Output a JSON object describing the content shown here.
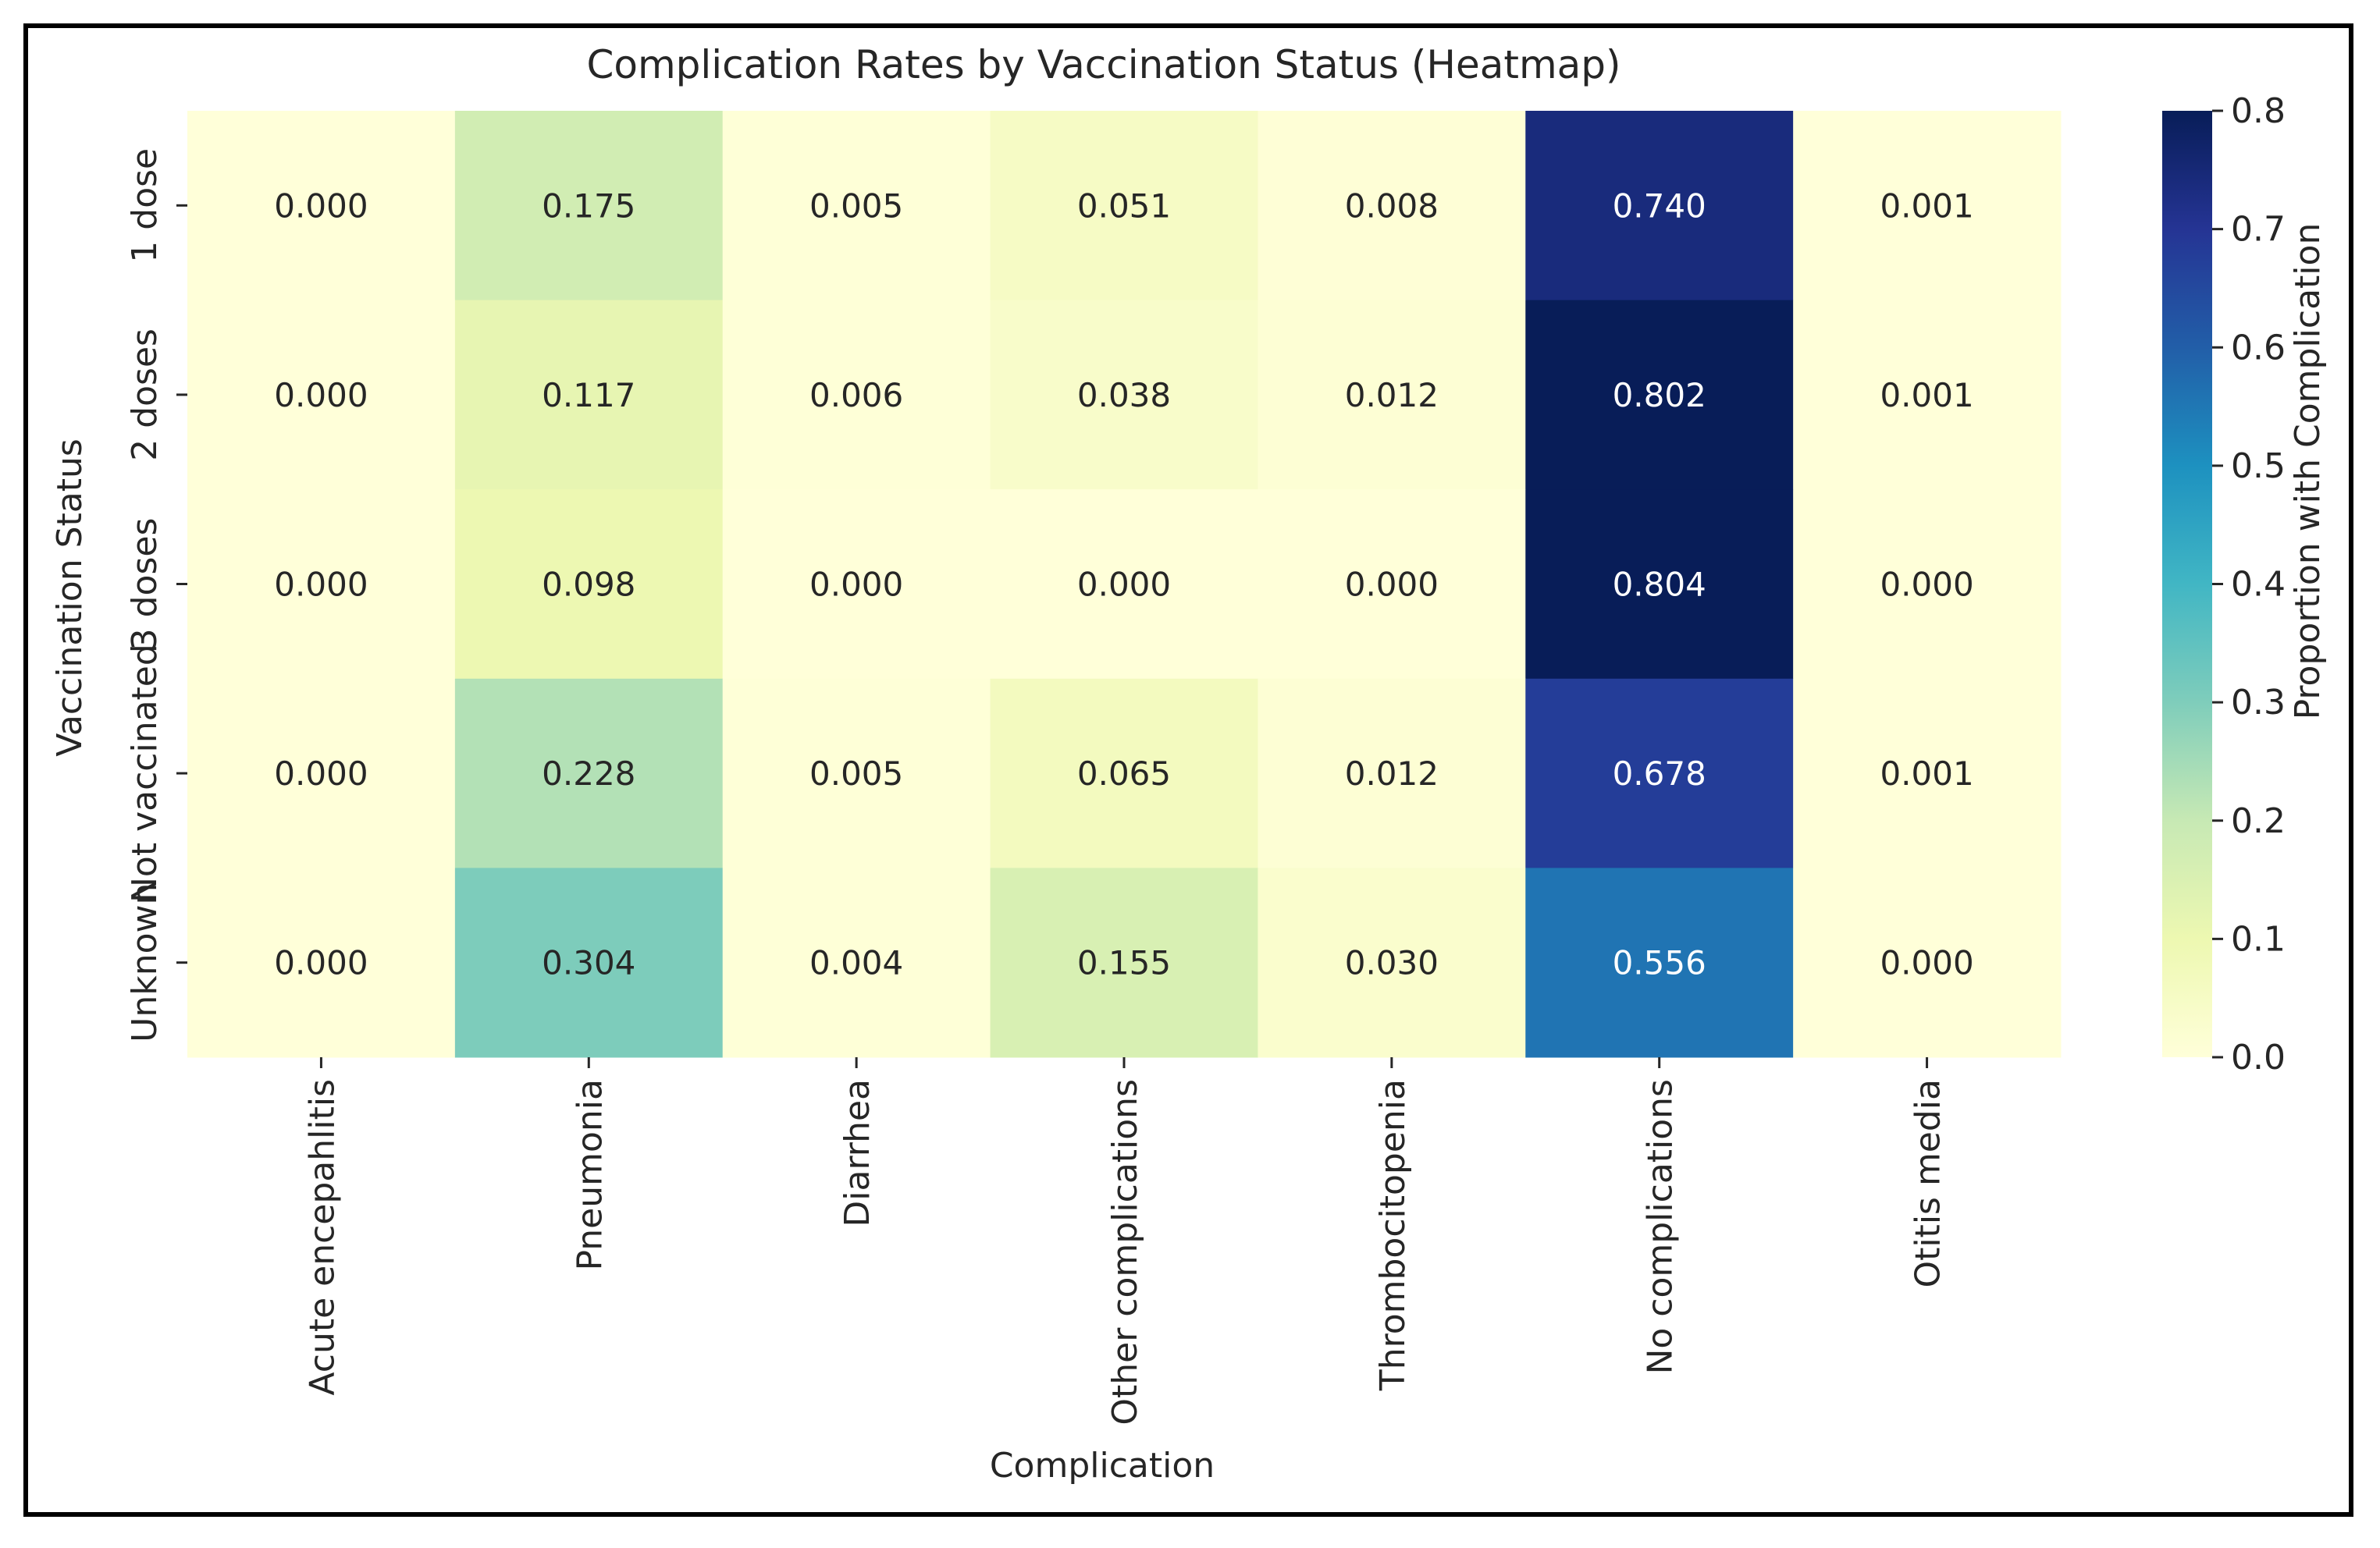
{
  "chart_data": {
    "type": "heatmap",
    "title": "Complication Rates by Vaccination Status (Heatmap)",
    "xlabel": "Complication",
    "ylabel": "Vaccination Status",
    "colorbar_label": "Proportion with Complication",
    "colorbar_range": [
      0.0,
      0.8
    ],
    "colorbar_ticks": [
      "0.0",
      "0.1",
      "0.2",
      "0.3",
      "0.4",
      "0.5",
      "0.6",
      "0.7",
      "0.8"
    ],
    "colormap": "YlGnBu",
    "columns": [
      "Acute encepahlitis",
      "Pneumonia",
      "Diarrhea",
      "Other complications",
      "Thrombocitopenia",
      "No complications",
      "Otitis media"
    ],
    "rows": [
      "1 dose",
      "2 doses",
      "3 doses",
      "Not vaccinated",
      "Unknown"
    ],
    "values": [
      [
        0.0,
        0.175,
        0.005,
        0.051,
        0.008,
        0.74,
        0.001
      ],
      [
        0.0,
        0.117,
        0.006,
        0.038,
        0.012,
        0.802,
        0.001
      ],
      [
        0.0,
        0.098,
        0.0,
        0.0,
        0.0,
        0.804,
        0.0
      ],
      [
        0.0,
        0.228,
        0.005,
        0.065,
        0.012,
        0.678,
        0.001
      ],
      [
        0.0,
        0.304,
        0.004,
        0.155,
        0.03,
        0.556,
        0.0
      ]
    ],
    "cell_labels": [
      [
        "0.000",
        "0.175",
        "0.005",
        "0.051",
        "0.008",
        "0.740",
        "0.001"
      ],
      [
        "0.000",
        "0.117",
        "0.006",
        "0.038",
        "0.012",
        "0.802",
        "0.001"
      ],
      [
        "0.000",
        "0.098",
        "0.000",
        "0.000",
        "0.000",
        "0.804",
        "0.000"
      ],
      [
        "0.000",
        "0.228",
        "0.005",
        "0.065",
        "0.012",
        "0.678",
        "0.001"
      ],
      [
        "0.000",
        "0.304",
        "0.004",
        "0.155",
        "0.030",
        "0.556",
        "0.000"
      ]
    ]
  }
}
